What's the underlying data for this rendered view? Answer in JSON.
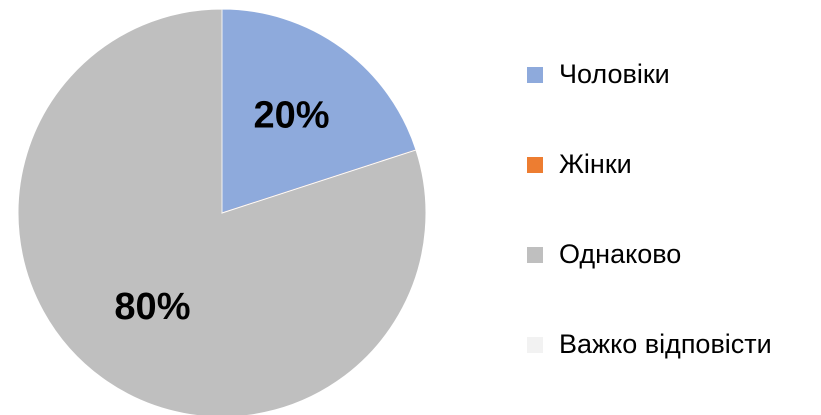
{
  "chart_data": {
    "type": "pie",
    "categories": [
      "Чоловіки",
      "Жінки",
      "Однаково",
      "Важко відповісти"
    ],
    "values": [
      20,
      0,
      80,
      0
    ],
    "value_labels": [
      "20%",
      null,
      "80%",
      null
    ],
    "colors": [
      "#8eaadc",
      "#ed7d31",
      "#bfbfbf",
      "#f2f2f2"
    ],
    "legend": "right"
  }
}
